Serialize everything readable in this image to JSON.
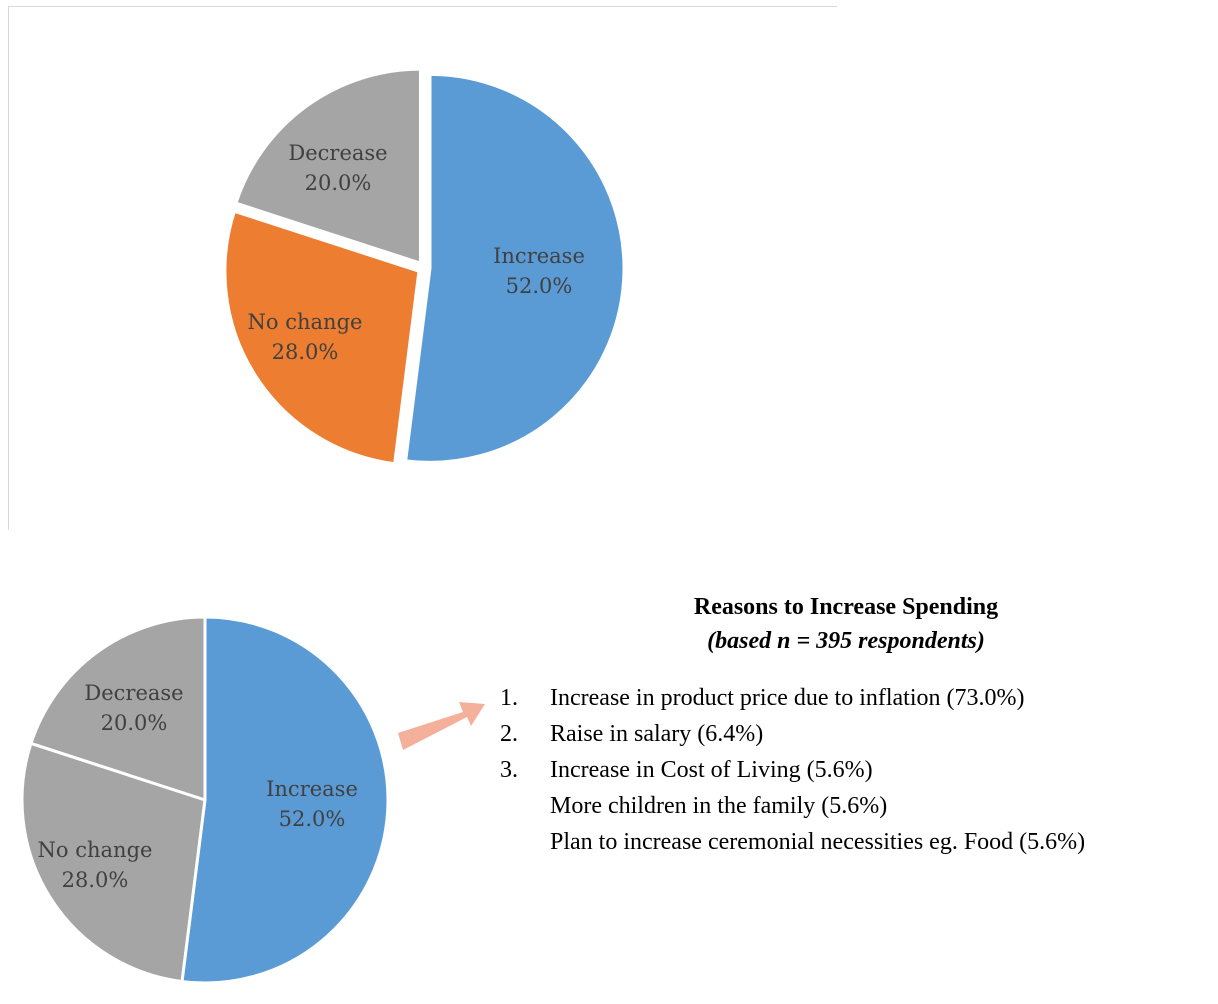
{
  "chart_data": [
    {
      "type": "pie",
      "slices": [
        {
          "label": "Increase",
          "value": 52.0,
          "display": "52.0%",
          "color": "#5b9bd5"
        },
        {
          "label": "No change",
          "value": 28.0,
          "display": "28.0%",
          "color": "#ed7d31"
        },
        {
          "label": "Decrease",
          "value": 20.0,
          "display": "20.0%",
          "color": "#a5a5a5"
        }
      ]
    },
    {
      "type": "pie",
      "slices": [
        {
          "label": "Increase",
          "value": 52.0,
          "display": "52.0%",
          "color": "#5b9bd5"
        },
        {
          "label": "No change",
          "value": 28.0,
          "display": "28.0%",
          "color": "#a5a5a5"
        },
        {
          "label": "Decrease",
          "value": 20.0,
          "display": "20.0%",
          "color": "#a5a5a5"
        }
      ]
    }
  ],
  "arrow_color": "#f4b09a",
  "reasons": {
    "title": "Reasons to Increase Spending",
    "subtitle": "(based n = 395 respondents)",
    "items": [
      {
        "num": "1.",
        "text": "Increase in product price due to inflation (73.0%)"
      },
      {
        "num": "2.",
        "text": "Raise in salary (6.4%)"
      },
      {
        "num": "3.",
        "text": "Increase in Cost of Living (5.6%)"
      },
      {
        "num": "",
        "text": "More children in the family (5.6%)"
      },
      {
        "num": "",
        "text": "Plan to increase ceremonial necessities eg. Food (5.6%)"
      }
    ]
  }
}
